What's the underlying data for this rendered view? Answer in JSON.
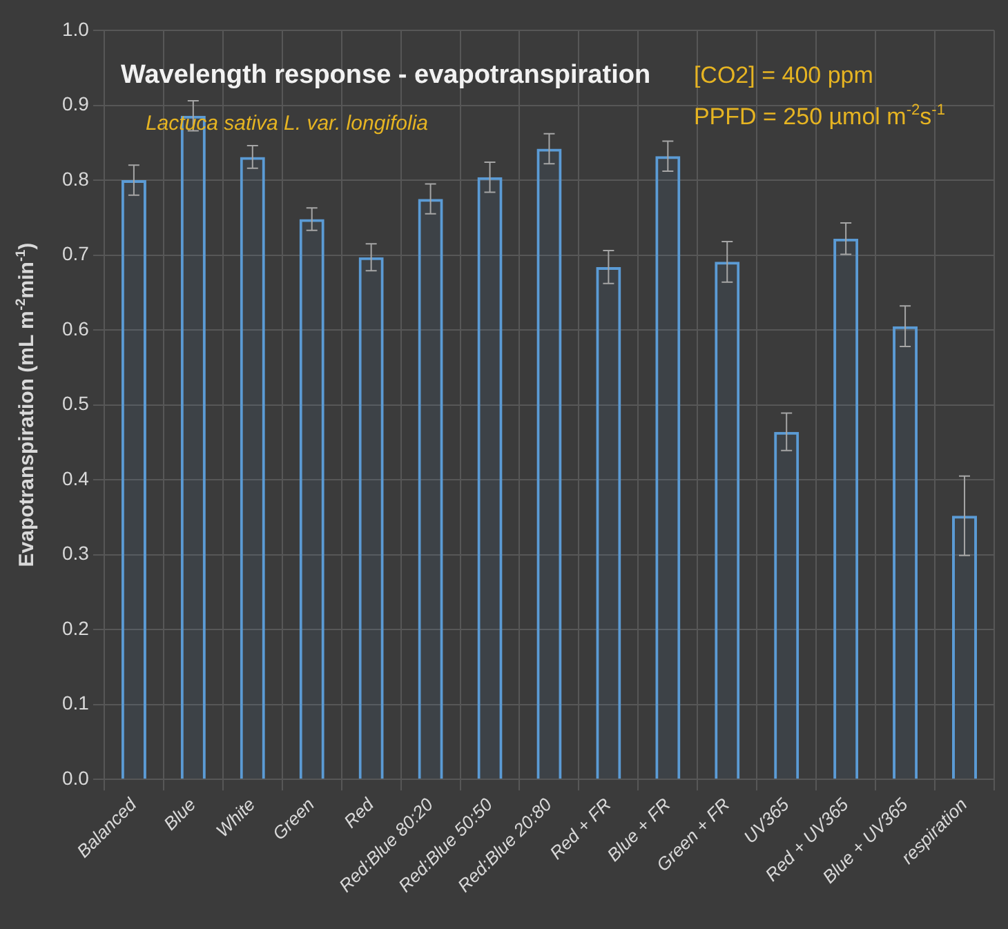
{
  "chart_data": {
    "type": "bar",
    "title": "Wavelength response - evapotranspiration",
    "ylabel": "Evapotranspiration (mL m$^{-2}$min$^{-1}$)",
    "annotations": [
      "Lactuca sativa L. var. longifolia",
      "[CO2] = 400 ppm",
      "PPFD = 250 µmol m$^{-2}$s$^{-1}$"
    ],
    "categories": [
      "Balanced",
      "Blue",
      "White",
      "Green",
      "Red",
      "Red:Blue 80:20",
      "Red:Blue 50:50",
      "Red:Blue 20:80",
      "Red + FR",
      "Blue + FR",
      "Green + FR",
      "UV365",
      "Red + UV365",
      "Blue + UV365",
      "respiration"
    ],
    "values": [
      0.8,
      0.886,
      0.831,
      0.748,
      0.697,
      0.775,
      0.804,
      0.842,
      0.684,
      0.832,
      0.691,
      0.464,
      0.722,
      0.605,
      0.352
    ],
    "errors": [
      0.02,
      0.02,
      0.015,
      0.015,
      0.018,
      0.02,
      0.02,
      0.02,
      0.022,
      0.02,
      0.027,
      0.025,
      0.021,
      0.027,
      0.053
    ],
    "color": "#5b9bd5",
    "ylim": [
      0,
      1
    ],
    "yticks": [
      {
        "value": 0,
        "label": "0.0"
      },
      0.1,
      0.2,
      0.3,
      0.4,
      0.5,
      0.6,
      0.7,
      0.8,
      0.9,
      {
        "value": 1,
        "label": "1.0"
      }
    ],
    "grid": true,
    "legend": false
  }
}
